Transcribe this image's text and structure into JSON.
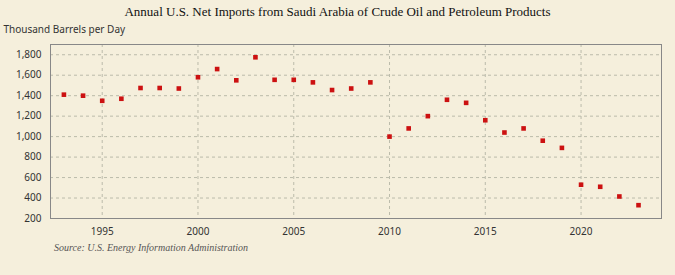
{
  "chart_data": {
    "type": "scatter",
    "title": "Annual U.S. Net Imports from Saudi Arabia of Crude Oil and Petroleum Products",
    "ylabel": "Thousand Barrels per Day",
    "annotations": [
      "Source: U.S. Energy Information Administration"
    ],
    "x": [
      1993,
      1994,
      1995,
      1996,
      1997,
      1998,
      1999,
      2000,
      2001,
      2002,
      2003,
      2004,
      2005,
      2006,
      2007,
      2008,
      2009,
      2010,
      2011,
      2012,
      2013,
      2014,
      2015,
      2016,
      2017,
      2018,
      2019,
      2020,
      2021,
      2022,
      2023
    ],
    "values": [
      1410,
      1400,
      1350,
      1370,
      1475,
      1475,
      1470,
      1580,
      1660,
      1550,
      1775,
      1555,
      1555,
      1530,
      1455,
      1470,
      1530,
      1000,
      1080,
      1200,
      1360,
      1330,
      1160,
      1040,
      1080,
      960,
      890,
      530,
      510,
      415,
      330
    ],
    "color": "#cc1111",
    "marker": "square",
    "xlim": [
      1992.3,
      2024.2
    ],
    "ylim": [
      200,
      1900
    ],
    "xticks": [
      1995,
      2000,
      2005,
      2010,
      2015,
      2020
    ],
    "yticks": [
      200,
      400,
      600,
      800,
      {
        "value": 1000,
        "label": "1,000"
      },
      {
        "value": 1200,
        "label": "1,200"
      },
      {
        "value": 1400,
        "label": "1,400"
      },
      {
        "value": 1600,
        "label": "1,600"
      },
      {
        "value": 1800,
        "label": "1,800"
      }
    ],
    "grid": true
  }
}
